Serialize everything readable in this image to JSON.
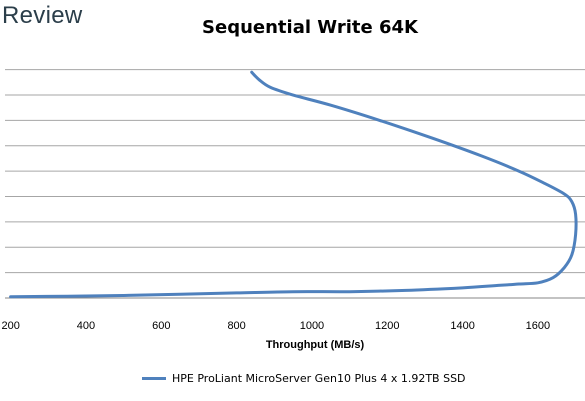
{
  "brand": {
    "name": "Review"
  },
  "chart_data": {
    "type": "line",
    "title": "Sequential Write 64K",
    "xlabel": "Throughput (MB/s)",
    "ylabel": "",
    "xlim": [
      185,
      1725
    ],
    "ylim": [
      0,
      9.5
    ],
    "xticks": [
      200,
      400,
      600,
      800,
      1000,
      1200,
      1400,
      1600
    ],
    "yticks": [
      0,
      1,
      2,
      3,
      4,
      5,
      6,
      7,
      8,
      9
    ],
    "grid": true,
    "legend": "bottom",
    "series": [
      {
        "name": "HPE ProLiant MicroServer Gen10 Plus 4 x 1.92TB SSD",
        "color": "#4f81bd",
        "x": [
          200,
          350,
          500,
          650,
          800,
          950,
          1100,
          1250,
          1400,
          1500,
          1550,
          1600,
          1640,
          1670,
          1690,
          1700,
          1700,
          1690,
          1670,
          1620,
          1550,
          1450,
          1320,
          1180,
          1050,
          950,
          890,
          860,
          840
        ],
        "y": [
          0.05,
          0.07,
          0.1,
          0.15,
          0.2,
          0.25,
          0.25,
          0.3,
          0.4,
          0.5,
          0.55,
          0.6,
          0.8,
          1.2,
          1.7,
          2.5,
          3.3,
          3.8,
          4.1,
          4.5,
          5.0,
          5.6,
          6.3,
          7.0,
          7.6,
          8.0,
          8.3,
          8.6,
          8.9
        ]
      }
    ]
  }
}
